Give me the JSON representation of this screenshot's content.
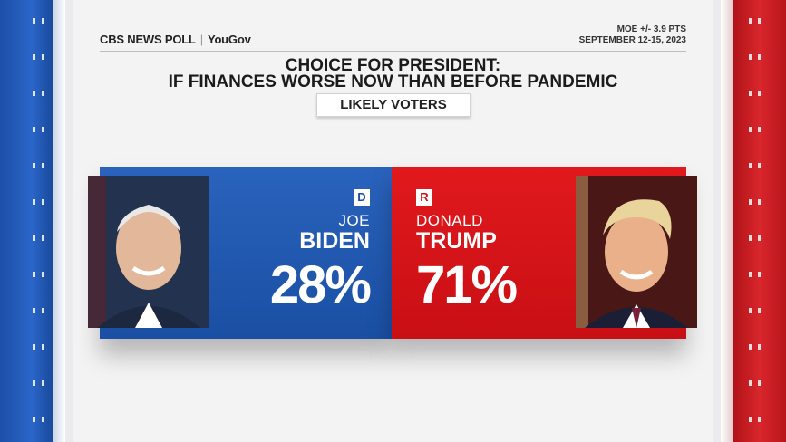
{
  "header": {
    "poll_brand": "CBS NEWS POLL",
    "partner": "YouGov",
    "moe": "MOE +/- 3.9 PTS",
    "dates": "SEPTEMBER 12-15, 2023",
    "title_line1": "CHOICE FOR PRESIDENT:",
    "title_line2": "IF FINANCES WORSE NOW THAN BEFORE PANDEMIC",
    "subgroup": "LIKELY VOTERS"
  },
  "candidates": {
    "dem": {
      "party_badge": "D",
      "first": "JOE",
      "last": "BIDEN",
      "percent_label": "28%"
    },
    "rep": {
      "party_badge": "R",
      "first": "DONALD",
      "last": "TRUMP",
      "percent_label": "71%"
    }
  },
  "colors": {
    "dem": "#1f56ad",
    "rep": "#d6161b"
  },
  "chart_data": {
    "type": "bar",
    "title": "CHOICE FOR PRESIDENT: IF FINANCES WORSE NOW THAN BEFORE PANDEMIC",
    "subtitle": "LIKELY VOTERS",
    "categories": [
      "JOE BIDEN",
      "DONALD TRUMP"
    ],
    "values": [
      28,
      71
    ]
  }
}
